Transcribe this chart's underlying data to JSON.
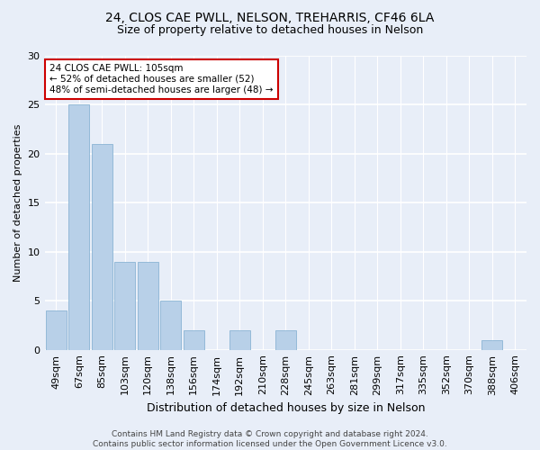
{
  "title1": "24, CLOS CAE PWLL, NELSON, TREHARRIS, CF46 6LA",
  "title2": "Size of property relative to detached houses in Nelson",
  "xlabel": "Distribution of detached houses by size in Nelson",
  "ylabel": "Number of detached properties",
  "categories": [
    "49sqm",
    "67sqm",
    "85sqm",
    "103sqm",
    "120sqm",
    "138sqm",
    "156sqm",
    "174sqm",
    "192sqm",
    "210sqm",
    "228sqm",
    "245sqm",
    "263sqm",
    "281sqm",
    "299sqm",
    "317sqm",
    "335sqm",
    "352sqm",
    "370sqm",
    "388sqm",
    "406sqm"
  ],
  "values": [
    4,
    25,
    21,
    9,
    9,
    5,
    2,
    0,
    2,
    0,
    2,
    0,
    0,
    0,
    0,
    0,
    0,
    0,
    0,
    1,
    0
  ],
  "bar_color": "#b8d0e8",
  "bar_edge_color": "#8ab4d4",
  "annotation_line1": "24 CLOS CAE PWLL: 105sqm",
  "annotation_line2": "← 52% of detached houses are smaller (52)",
  "annotation_line3": "48% of semi-detached houses are larger (48) →",
  "annotation_box_facecolor": "#ffffff",
  "annotation_box_edgecolor": "#cc0000",
  "ylim": [
    0,
    30
  ],
  "yticks": [
    0,
    5,
    10,
    15,
    20,
    25,
    30
  ],
  "footer_text": "Contains HM Land Registry data © Crown copyright and database right 2024.\nContains public sector information licensed under the Open Government Licence v3.0.",
  "bg_color": "#e8eef8",
  "plot_bg_color": "#e8eef8",
  "grid_color": "#ffffff",
  "title1_fontsize": 10,
  "title2_fontsize": 9,
  "ylabel_fontsize": 8,
  "xlabel_fontsize": 9,
  "tick_fontsize": 8,
  "annotation_fontsize": 7.5,
  "footer_fontsize": 6.5
}
